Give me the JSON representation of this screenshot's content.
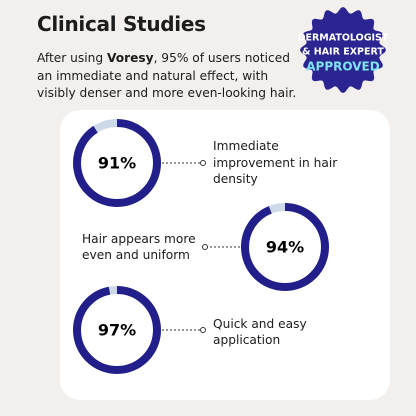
{
  "header": {
    "title": "Clinical Studies",
    "intro": {
      "before": "After using ",
      "brand": "Voresy",
      "after": ", 95% of users noticed an immediate and natural effect, with visibly denser and more even-looking hair."
    }
  },
  "badge": {
    "lines": [
      "DERMATOLOGIST",
      "& HAIR EXPERT"
    ],
    "highlight": "APPROVED"
  },
  "stats": [
    {
      "value": 91,
      "value_label": "91%",
      "text": "Immediate improvement in hair density"
    },
    {
      "value": 94,
      "value_label": "94%",
      "text": "Hair appears more even and uniform"
    },
    {
      "value": 97,
      "value_label": "97%",
      "text": "Quick and easy application"
    }
  ]
}
